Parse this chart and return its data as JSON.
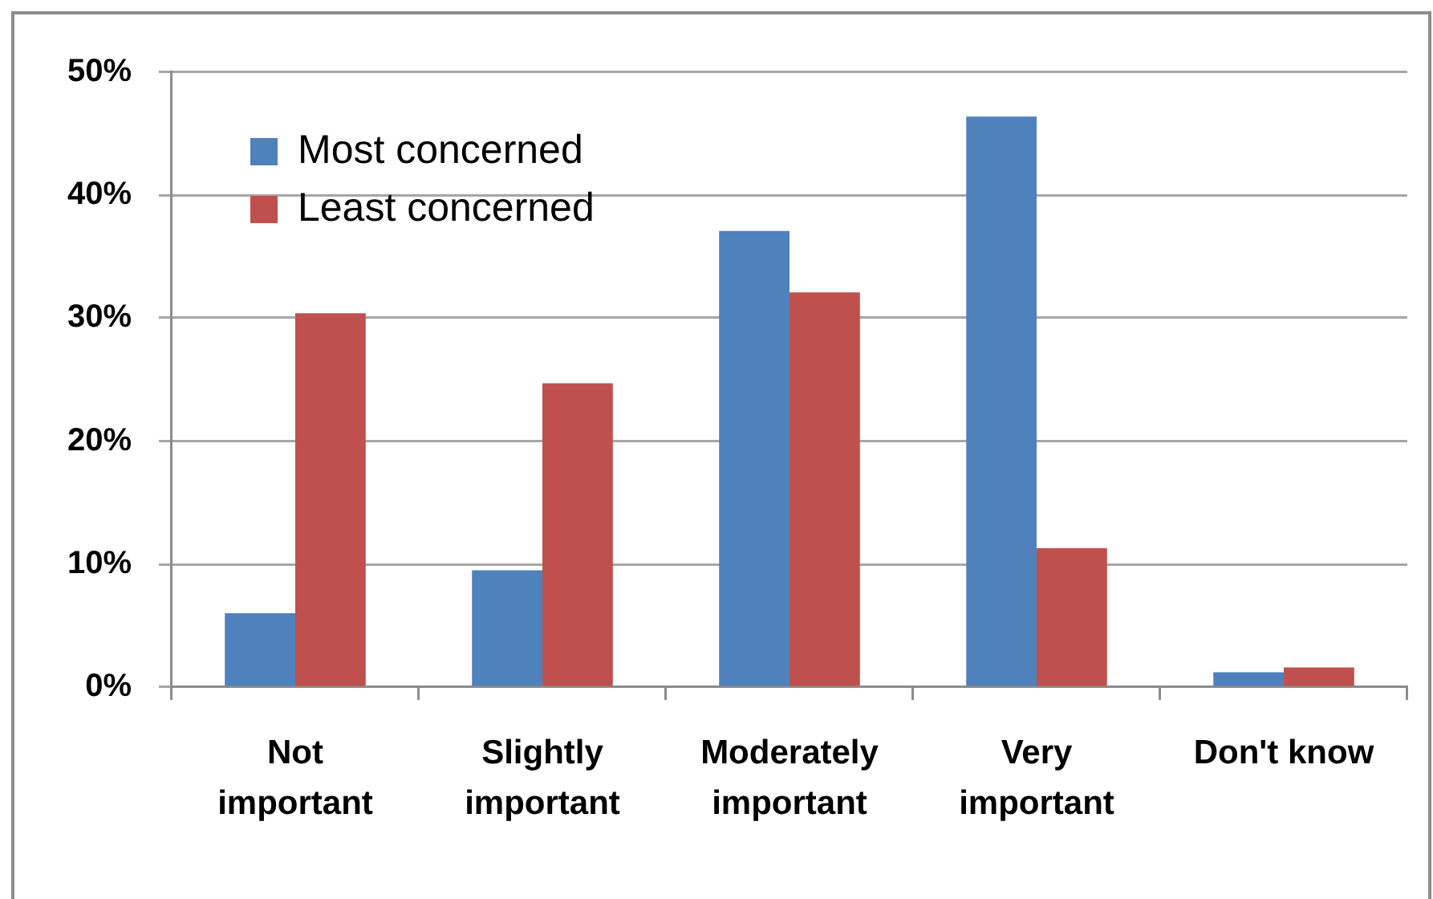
{
  "chart_data": {
    "type": "bar",
    "categories": [
      "Not important",
      "Slightly important",
      "Moderately important",
      "Very important",
      "Don't know"
    ],
    "series": [
      {
        "name": "Most concerned",
        "color": "#4f81bd",
        "values": [
          6.0,
          9.5,
          37.1,
          46.4,
          1.2
        ]
      },
      {
        "name": "Least concerned",
        "color": "#c0504d",
        "values": [
          30.4,
          24.7,
          32.1,
          11.3,
          1.6
        ]
      }
    ],
    "ylim": [
      0,
      50
    ],
    "yticks": [
      {
        "value": 0,
        "label": "0%"
      },
      {
        "value": 10,
        "label": "10%"
      },
      {
        "value": 20,
        "label": "20%"
      },
      {
        "value": 30,
        "label": "30%"
      },
      {
        "value": 40,
        "label": "40%"
      },
      {
        "value": 50,
        "label": "50%"
      }
    ],
    "grid": "y",
    "legend": "top left"
  }
}
